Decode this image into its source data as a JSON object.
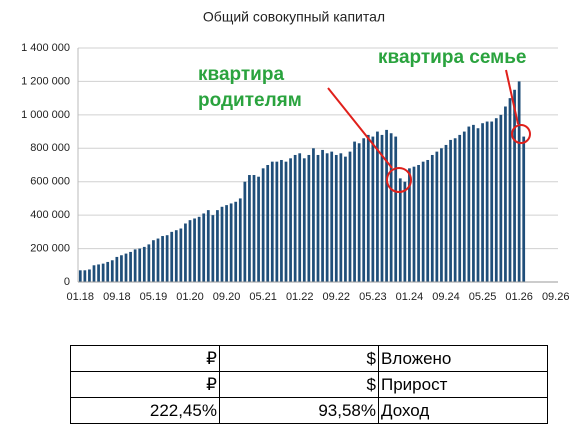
{
  "chart_data": {
    "type": "bar",
    "title": "Общий совокупный капитал",
    "categories": [
      "01.18",
      null,
      null,
      null,
      null,
      null,
      null,
      null,
      "09.18",
      null,
      null,
      null,
      null,
      null,
      null,
      null,
      "05.19",
      null,
      null,
      null,
      null,
      null,
      null,
      null,
      "01.20",
      null,
      null,
      null,
      null,
      null,
      null,
      null,
      "09.20",
      null,
      null,
      null,
      null,
      null,
      null,
      null,
      "05.21",
      null,
      null,
      null,
      null,
      null,
      null,
      null,
      "01.22",
      null,
      null,
      null,
      null,
      null,
      null,
      null,
      "09.22",
      null,
      null,
      null,
      null,
      null,
      null,
      null,
      "05.23",
      null,
      null,
      null,
      null,
      null,
      null,
      null,
      "01.24",
      null,
      null,
      null,
      null,
      null,
      null,
      null,
      "09.24",
      null,
      null,
      null,
      null,
      null,
      null,
      null,
      "05.25",
      null,
      null,
      null,
      null,
      null,
      null,
      null,
      "01.26",
      null,
      null,
      null,
      null,
      null,
      null,
      null,
      "09.26"
    ],
    "values": [
      70000,
      70000,
      75000,
      100000,
      105000,
      110000,
      120000,
      130000,
      150000,
      160000,
      170000,
      180000,
      195000,
      200000,
      210000,
      225000,
      250000,
      260000,
      275000,
      280000,
      300000,
      310000,
      320000,
      350000,
      370000,
      380000,
      390000,
      410000,
      430000,
      400000,
      430000,
      450000,
      460000,
      470000,
      480000,
      500000,
      600000,
      640000,
      640000,
      630000,
      680000,
      700000,
      720000,
      720000,
      730000,
      720000,
      740000,
      760000,
      770000,
      740000,
      760000,
      800000,
      760000,
      790000,
      770000,
      780000,
      760000,
      770000,
      750000,
      780000,
      840000,
      830000,
      860000,
      880000,
      870000,
      900000,
      880000,
      910000,
      890000,
      870000,
      620000,
      600000,
      680000,
      690000,
      700000,
      720000,
      730000,
      760000,
      780000,
      800000,
      820000,
      850000,
      860000,
      880000,
      900000,
      930000,
      940000,
      920000,
      950000,
      960000,
      960000,
      980000,
      1000000,
      1050000,
      1100000,
      1150000,
      1200000,
      870000,
      null,
      null,
      null,
      null,
      null,
      null,
      null
    ],
    "color": "#1f4e79",
    "ylim": [
      0,
      1400000
    ],
    "yticks": [
      0,
      {
        "value": 200000,
        "label": "200 000"
      },
      {
        "value": 400000,
        "label": "400 000"
      },
      {
        "value": 600000,
        "label": "600 000"
      },
      {
        "value": 800000,
        "label": "800 000"
      },
      {
        "value": 1000000,
        "label": "1 000 000"
      },
      {
        "value": 1200000,
        "label": "1 200 000"
      },
      {
        "value": 1400000,
        "label": "1 400 000"
      }
    ],
    "grid": true,
    "annotations": [
      {
        "lines": [
          "квартира",
          "родителям"
        ]
      },
      {
        "lines": [
          "квартира семье"
        ]
      }
    ]
  },
  "table": {
    "rows": [
      [
        "₽",
        "$",
        "Вложено"
      ],
      [
        "₽",
        "$",
        "Прирост"
      ],
      [
        "222,45%",
        "93,58%",
        "Доход"
      ]
    ]
  }
}
